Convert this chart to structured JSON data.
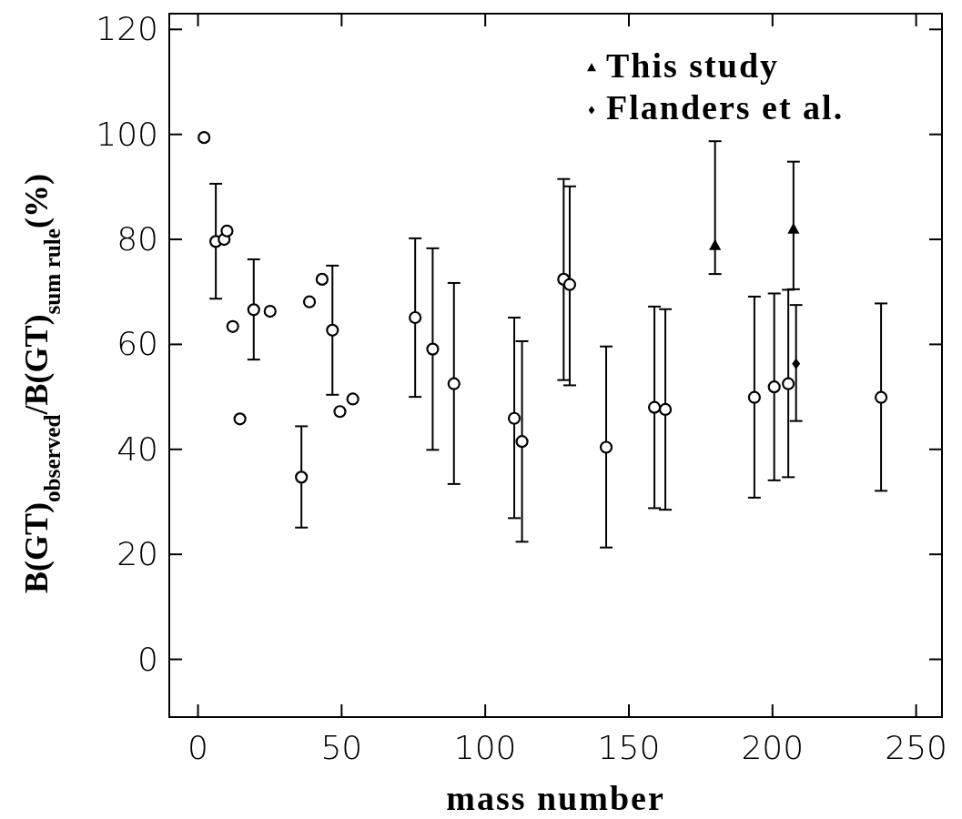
{
  "chart_data": {
    "type": "scatter",
    "xlabel": "mass number",
    "ylabel": "B(GT)$_{observed}$/B(GT)$_{sum rule}$(%)",
    "xlim": [
      -10,
      259
    ],
    "ylim": [
      -11,
      123
    ],
    "xticks": [
      0,
      50,
      100,
      150,
      200,
      250
    ],
    "yticks": [
      0,
      20,
      40,
      60,
      80,
      100,
      120
    ],
    "grid": false,
    "legend": "top right",
    "series": [
      {
        "color": "#000000",
        "marker": "circle",
        "x": [
          2.1,
          6.2,
          9.1,
          10.1,
          12.1,
          14.6,
          19.4,
          25.1,
          36.0,
          38.8,
          43.2,
          46.8,
          49.4,
          53.9,
          75.6,
          81.7,
          89.1,
          110.1,
          112.8,
          127.3,
          129.4,
          142.1,
          158.9,
          162.7,
          193.7,
          200.6,
          205.5,
          237.8
        ],
        "values": [
          99.4,
          79.6,
          80.0,
          81.6,
          63.4,
          45.8,
          66.6,
          66.3,
          34.7,
          68.1,
          72.4,
          62.7,
          47.2,
          49.6,
          65.1,
          59.1,
          52.5,
          45.9,
          41.5,
          72.4,
          71.4,
          40.4,
          48.0,
          47.6,
          49.9,
          51.9,
          52.5,
          49.9
        ],
        "errors": [
          null,
          [
            68.7,
            90.6
          ],
          null,
          null,
          null,
          null,
          [
            57.1,
            76.2
          ],
          null,
          [
            25.1,
            44.4
          ],
          null,
          null,
          [
            50.4,
            75.0
          ],
          null,
          null,
          [
            50.0,
            80.2
          ],
          [
            39.9,
            78.3
          ],
          [
            33.4,
            71.7
          ],
          [
            26.9,
            65.1
          ],
          [
            22.4,
            60.6
          ],
          [
            53.2,
            91.5
          ],
          [
            52.2,
            90.1
          ],
          [
            21.3,
            59.6
          ],
          [
            28.8,
            67.2
          ],
          [
            28.5,
            66.7
          ],
          [
            30.8,
            69.1
          ],
          [
            34.1,
            69.7
          ],
          [
            34.7,
            70.4
          ],
          [
            32.1,
            67.8
          ]
        ]
      },
      {
        "name": "This study",
        "color": "#000000",
        "marker": "triangle",
        "x": [
          180.0,
          207.3
        ],
        "values": [
          78.7,
          81.8
        ],
        "errors": [
          [
            73.4,
            98.7
          ],
          [
            70.5,
            94.8
          ]
        ]
      },
      {
        "name": "Flanders et al.",
        "color": "#000000",
        "marker": "diamond",
        "x": [
          208.2
        ],
        "values": [
          56.3
        ],
        "errors": [
          [
            45.4,
            67.5
          ]
        ]
      }
    ]
  }
}
